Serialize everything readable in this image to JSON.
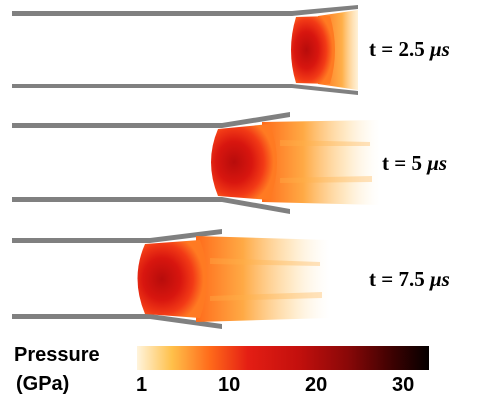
{
  "frames": [
    {
      "time_prefix": "t = ",
      "time_value": "2.5",
      "time_unit": "μs"
    },
    {
      "time_prefix": "t = ",
      "time_value": "5",
      "time_unit": "μs"
    },
    {
      "time_prefix": "t = ",
      "time_value": "7.5",
      "time_unit": "μs"
    }
  ],
  "colorbar": {
    "title_line1": "Pressure",
    "title_line2": "(GPa)",
    "ticks": [
      "1",
      "10",
      "20",
      "30"
    ],
    "colors": [
      "#fff4dc",
      "#ffc04a",
      "#ff6a1a",
      "#e41e14",
      "#c4100d",
      "#8a0808",
      "#3a0101",
      "#050000"
    ]
  },
  "colors": {
    "tube_wall": "#808080",
    "high_pressure": "#c4100d",
    "mid_pressure": "#ff6a1a",
    "low_pressure": "#fff4dc"
  }
}
